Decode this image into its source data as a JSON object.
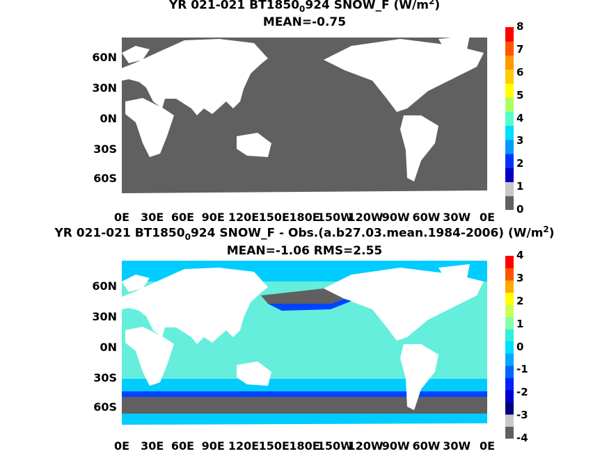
{
  "panel1": {
    "title_prefix": "YR 021-021 BT1850",
    "title_sub": "0",
    "title_suffix": "924  SNOW_F (W/m",
    "title_sup": "2",
    "title_end": ")",
    "mean_text": "MEAN=-0.75",
    "colorbar_ticks": [
      "8",
      "7",
      "6",
      "5",
      "4",
      "3",
      "2",
      "1",
      "0"
    ],
    "colorbar_colors": [
      "#606060",
      "#c8c8c8",
      "#0000c0",
      "#0033ff",
      "#0099ff",
      "#00ddff",
      "#55ffcc",
      "#aaff66",
      "#ffff00",
      "#ffcc00",
      "#ff9900",
      "#ff5500",
      "#ff0000"
    ]
  },
  "panel2": {
    "title_prefix": "YR 021-021 BT1850",
    "title_sub": "0",
    "title_suffix": "924 SNOW_F - Obs.(a.b27.03.mean.1984-2006) (W/m",
    "title_sup": "2",
    "title_end": ")",
    "mean_text": "MEAN=-1.06 RMS=2.55",
    "colorbar_ticks": [
      "4",
      "3",
      "2",
      "1",
      "0",
      "-1",
      "-2",
      "-3",
      "-4"
    ],
    "colorbar_colors": [
      "#606060",
      "#c8c8c8",
      "#000080",
      "#0000cc",
      "#0022ff",
      "#0066ff",
      "#00aaff",
      "#00ddff",
      "#33eedd",
      "#88ffaa",
      "#ccff55",
      "#ffff00",
      "#ffaa00",
      "#ff5500",
      "#ff0000"
    ]
  },
  "lat_labels": [
    "60N",
    "30N",
    "0N",
    "30S",
    "60S"
  ],
  "lon_labels": [
    "0E",
    "30E",
    "60E",
    "90E",
    "120E",
    "150E",
    "180E",
    "150W",
    "120W",
    "90W",
    "60W",
    "30W",
    "0E"
  ],
  "map_colors": {
    "ocean_panel1": "#606060",
    "land": "#ffffff",
    "ice_panel2": "#606060",
    "ocean_panel2_main": "#66eedd",
    "ocean_panel2_edge": "#00ccff",
    "ocean_panel2_deep": "#0044ff"
  }
}
